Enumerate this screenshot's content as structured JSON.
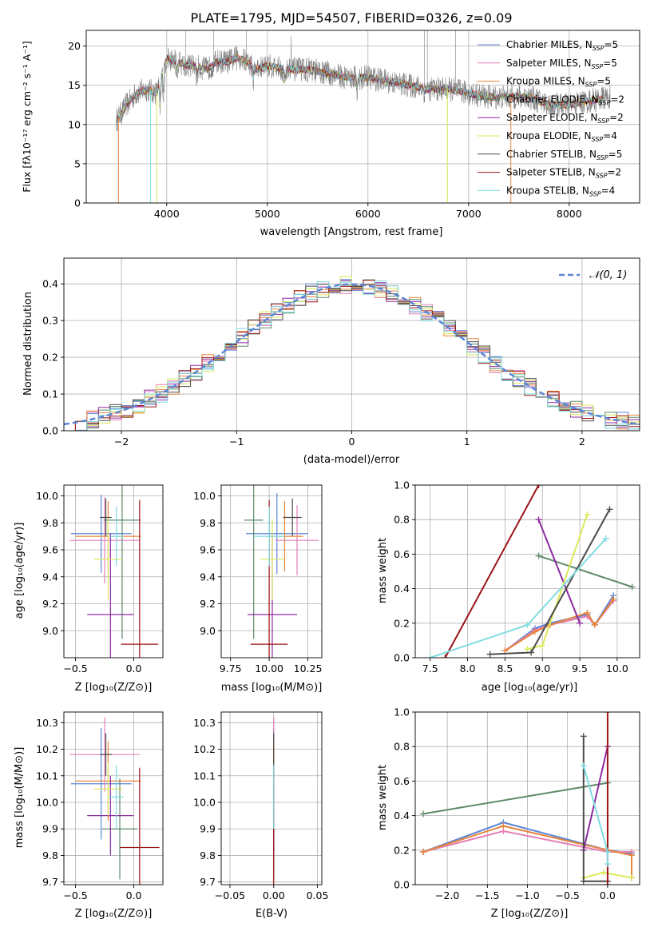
{
  "figure_title": "PLATE=1795, MJD=54507, FIBERID=0326, z=0.09",
  "colors": [
    "#5b86d6",
    "#e57fb6",
    "#e8853a",
    "#5e8a69",
    "#8e2aa0",
    "#dce85a",
    "#4b4b4b",
    "#9b1416",
    "#7fdde0"
  ],
  "labels": {
    "spectrum_ylabel": "Flux [fλ10⁻¹⁷ erg cm⁻² s⁻¹ A⁻¹]",
    "spectrum_xlabel": "wavelength [Angstrom, rest frame]",
    "resid_ylabel": "Normed distribution",
    "resid_xlabel": "(data-model)/error",
    "resid_legend": "𝒩(0, 1)",
    "age_ylabel": "age  [log₁₀(age/yr)]",
    "mass_ylabel": "mass [log₁₀(M/M⊙)]",
    "z_xlabel": "Z [log₁₀(Z/Z⊙)]",
    "mass_xlabel": "mass [log₁₀(M/M⊙)]",
    "ebv_xlabel": "E(B-V)",
    "age_xlabel": "age  [log₁₀(age/yr)]",
    "mw_ylabel": "mass weight"
  },
  "chart_data": [
    {
      "type": "line",
      "id": "spectrum",
      "xlim": [
        3200,
        8700
      ],
      "ylim": [
        0,
        22
      ],
      "xticks": [
        4000,
        5000,
        6000,
        7000,
        8000
      ],
      "yticks": [
        0,
        5,
        10,
        15,
        20
      ],
      "legend": [
        "Chabrier MILES, N_SSP=5",
        "Salpeter MILES, N_SSP=5",
        "Kroupa MILES, N_SSP=5",
        "Chabrier ELODIE, N_SSP=2",
        "Salpeter ELODIE, N_SSP=2",
        "Kroupa ELODIE, N_SSP=4",
        "Chabrier STELIB, N_SSP=5",
        "Salpeter STELIB, N_SSP=2",
        "Kroupa STELIB, N_SSP=4"
      ],
      "continuum": {
        "x": [
          3500,
          3600,
          3700,
          3800,
          3900,
          4000,
          4100,
          4200,
          4300,
          4400,
          4500,
          4600,
          4700,
          4800,
          4900,
          5000,
          5200,
          5400,
          5600,
          5800,
          6000,
          6200,
          6400,
          6600,
          6800,
          7000,
          7200,
          7400,
          7600,
          7800,
          8000,
          8200,
          8400
        ],
        "y": [
          10.5,
          12.5,
          14.0,
          14.5,
          14.0,
          18.5,
          18.0,
          17.5,
          17.5,
          17.0,
          18.0,
          18.0,
          18.5,
          18.0,
          17.0,
          17.5,
          17.0,
          17.0,
          16.5,
          16.0,
          16.0,
          15.5,
          15.0,
          14.5,
          14.5,
          14.0,
          13.5,
          13.5,
          13.5,
          12.5,
          12.5,
          13.0,
          13.5
        ]
      }
    },
    {
      "type": "line",
      "id": "residuals",
      "xlim": [
        -2.5,
        2.5
      ],
      "ylim": [
        0,
        0.47
      ],
      "xticks": [
        -2,
        -1,
        0,
        1,
        2
      ],
      "yticks": [
        0.0,
        0.1,
        0.2,
        0.3,
        0.4
      ],
      "bin_width": 0.1,
      "normal_curve": {
        "mean": 0,
        "sigma": 1
      }
    },
    {
      "type": "scatter",
      "id": "age_vs_Z",
      "xlim": [
        -0.6,
        0.25
      ],
      "ylim": [
        8.8,
        10.08
      ],
      "xticks": [
        -0.5,
        0.0
      ],
      "yticks": [
        9.0,
        9.2,
        9.4,
        9.6,
        9.8,
        10.0
      ],
      "points": [
        {
          "x": -0.28,
          "y": 9.72,
          "xerr": 0.26,
          "yerr": 0.29
        },
        {
          "x": -0.25,
          "y": 9.67,
          "xerr": 0.3,
          "yerr": 0.32
        },
        {
          "x": -0.22,
          "y": 9.7,
          "xerr": 0.28,
          "yerr": 0.26
        },
        {
          "x": -0.1,
          "y": 9.82,
          "xerr": 0.16,
          "yerr": 0.88
        },
        {
          "x": -0.2,
          "y": 9.12,
          "xerr": 0.2,
          "yerr": 0.6
        },
        {
          "x": -0.22,
          "y": 9.53,
          "xerr": 0.12,
          "yerr": 0.3
        },
        {
          "x": -0.24,
          "y": 9.84,
          "xerr": 0.05,
          "yerr": 0.14
        },
        {
          "x": 0.05,
          "y": 8.9,
          "xerr": 0.16,
          "yerr": 1.07
        },
        {
          "x": -0.15,
          "y": 9.7,
          "xerr": 0.06,
          "yerr": 0.22
        }
      ]
    },
    {
      "type": "scatter",
      "id": "age_vs_mass",
      "xlim": [
        9.69,
        10.34
      ],
      "ylim": [
        8.8,
        10.08
      ],
      "xticks": [
        9.75,
        10.0,
        10.25
      ],
      "yticks": [
        9.0,
        9.2,
        9.4,
        9.6,
        9.8,
        10.0
      ],
      "points": [
        {
          "x": 10.05,
          "y": 9.72,
          "xerr": 0.2,
          "yerr": 0.3
        },
        {
          "x": 10.18,
          "y": 9.67,
          "xerr": 0.14,
          "yerr": 0.26
        },
        {
          "x": 10.1,
          "y": 9.7,
          "xerr": 0.12,
          "yerr": 0.26
        },
        {
          "x": 9.9,
          "y": 9.82,
          "xerr": 0.06,
          "yerr": 0.88
        },
        {
          "x": 10.02,
          "y": 9.12,
          "xerr": 0.16,
          "yerr": 0.6
        },
        {
          "x": 10.02,
          "y": 9.53,
          "xerr": 0.08,
          "yerr": 0.3
        },
        {
          "x": 10.15,
          "y": 9.84,
          "xerr": 0.06,
          "yerr": 0.14
        },
        {
          "x": 10.0,
          "y": 8.9,
          "xerr": 0.12,
          "yerr": 1.07
        },
        {
          "x": 10.0,
          "y": 9.7,
          "xerr": 0.1,
          "yerr": 0.22
        }
      ]
    },
    {
      "type": "line",
      "id": "weight_vs_age",
      "xlim": [
        7.3,
        10.3
      ],
      "ylim": [
        0,
        1.0
      ],
      "xticks": [
        7.5,
        8.0,
        8.5,
        9.0,
        9.5,
        10.0
      ],
      "yticks": [
        0.0,
        0.2,
        0.4,
        0.6,
        0.8,
        1.0
      ],
      "series": [
        {
          "x": [
            8.5,
            8.9,
            9.1,
            9.6,
            9.7,
            9.95
          ],
          "y": [
            0.04,
            0.17,
            0.2,
            0.25,
            0.19,
            0.36
          ]
        },
        {
          "x": [
            8.5,
            8.9,
            9.1,
            9.6,
            9.7,
            9.95
          ],
          "y": [
            0.04,
            0.16,
            0.19,
            0.24,
            0.19,
            0.33
          ]
        },
        {
          "x": [
            8.5,
            8.9,
            9.1,
            9.6,
            9.7,
            9.95
          ],
          "y": [
            0.04,
            0.15,
            0.19,
            0.26,
            0.19,
            0.34
          ]
        },
        {
          "x": [
            8.95,
            10.2
          ],
          "y": [
            0.59,
            0.41
          ]
        },
        {
          "x": [
            8.95,
            9.5
          ],
          "y": [
            0.8,
            0.2
          ]
        },
        {
          "x": [
            8.8,
            9.0,
            9.6
          ],
          "y": [
            0.05,
            0.07,
            0.83
          ]
        },
        {
          "x": [
            8.3,
            8.85,
            9.9
          ],
          "y": [
            0.02,
            0.03,
            0.86
          ]
        },
        {
          "x": [
            7.7,
            8.95
          ],
          "y": [
            0.0,
            1.0
          ]
        },
        {
          "x": [
            7.5,
            8.8,
            9.85
          ],
          "y": [
            0.0,
            0.19,
            0.69
          ]
        }
      ]
    },
    {
      "type": "scatter",
      "id": "mass_vs_Z",
      "xlim": [
        -0.6,
        0.25
      ],
      "ylim": [
        9.69,
        10.34
      ],
      "xticks": [
        -0.5,
        0.0
      ],
      "yticks": [
        9.7,
        9.8,
        9.9,
        10.0,
        10.1,
        10.2,
        10.3
      ],
      "points": [
        {
          "x": -0.28,
          "y": 10.07,
          "xerr": 0.26,
          "yerr": 0.21
        },
        {
          "x": -0.25,
          "y": 10.18,
          "xerr": 0.3,
          "yerr": 0.14
        },
        {
          "x": -0.22,
          "y": 10.08,
          "xerr": 0.28,
          "yerr": 0.15
        },
        {
          "x": -0.12,
          "y": 9.9,
          "xerr": 0.15,
          "yerr": 0.19
        },
        {
          "x": -0.2,
          "y": 9.95,
          "xerr": 0.2,
          "yerr": 0.15
        },
        {
          "x": -0.22,
          "y": 10.05,
          "xerr": 0.12,
          "yerr": 0.1
        },
        {
          "x": -0.24,
          "y": 10.18,
          "xerr": 0.05,
          "yerr": 0.08
        },
        {
          "x": 0.05,
          "y": 9.83,
          "xerr": 0.17,
          "yerr": 0.3
        },
        {
          "x": -0.15,
          "y": 10.02,
          "xerr": 0.06,
          "yerr": 0.12
        }
      ]
    },
    {
      "type": "scatter",
      "id": "mass_vs_ebv",
      "xlim": [
        -0.06,
        0.055
      ],
      "ylim": [
        9.69,
        10.34
      ],
      "xticks": [
        -0.05,
        0.0,
        0.05
      ],
      "yticks": [
        9.7,
        9.8,
        9.9,
        10.0,
        10.1,
        10.2,
        10.3
      ],
      "points": [
        {
          "x": 0.0,
          "y": 10.07,
          "yerr": 0.21
        },
        {
          "x": 0.0,
          "y": 10.18,
          "yerr": 0.14
        },
        {
          "x": 0.0,
          "y": 10.08,
          "yerr": 0.15
        },
        {
          "x": 0.0,
          "y": 9.9,
          "yerr": 0.19
        },
        {
          "x": 0.0,
          "y": 9.95,
          "yerr": 0.15
        },
        {
          "x": 0.0,
          "y": 10.05,
          "yerr": 0.1
        },
        {
          "x": 0.0,
          "y": 10.18,
          "yerr": 0.08
        },
        {
          "x": 0.0,
          "y": 9.83,
          "yerr": 0.3
        },
        {
          "x": 0.0,
          "y": 10.02,
          "yerr": 0.12
        }
      ]
    },
    {
      "type": "line",
      "id": "weight_vs_Z",
      "xlim": [
        -2.4,
        0.4
      ],
      "ylim": [
        0,
        1.0
      ],
      "xticks": [
        -2.0,
        -1.5,
        -1.0,
        -0.5,
        0.0
      ],
      "yticks": [
        0.0,
        0.2,
        0.4,
        0.6,
        0.8,
        1.0
      ],
      "series": [
        {
          "x": [
            -2.3,
            -1.3,
            0.0,
            0.3,
            0.3
          ],
          "y": [
            0.19,
            0.36,
            0.2,
            0.18,
            0.04
          ]
        },
        {
          "x": [
            -2.3,
            -1.3,
            0.0,
            0.3,
            0.3
          ],
          "y": [
            0.19,
            0.31,
            0.19,
            0.19,
            0.04
          ]
        },
        {
          "x": [
            -2.3,
            -1.3,
            0.0,
            0.3,
            0.3
          ],
          "y": [
            0.19,
            0.34,
            0.2,
            0.17,
            0.04
          ]
        },
        {
          "x": [
            -2.3,
            0.0
          ],
          "y": [
            0.41,
            0.59
          ]
        },
        {
          "x": [
            -0.3,
            0.0
          ],
          "y": [
            0.2,
            0.8
          ]
        },
        {
          "x": [
            -0.3,
            -0.05,
            0.3
          ],
          "y": [
            0.04,
            0.07,
            0.04
          ]
        },
        {
          "x": [
            -0.3,
            -0.3,
            0.0
          ],
          "y": [
            0.86,
            0.02,
            0.02
          ]
        },
        {
          "x": [
            0.0,
            0.0
          ],
          "y": [
            0.0,
            1.0
          ]
        },
        {
          "x": [
            -0.3,
            0.0,
            0.0
          ],
          "y": [
            0.69,
            0.19,
            0.12
          ]
        }
      ]
    }
  ]
}
